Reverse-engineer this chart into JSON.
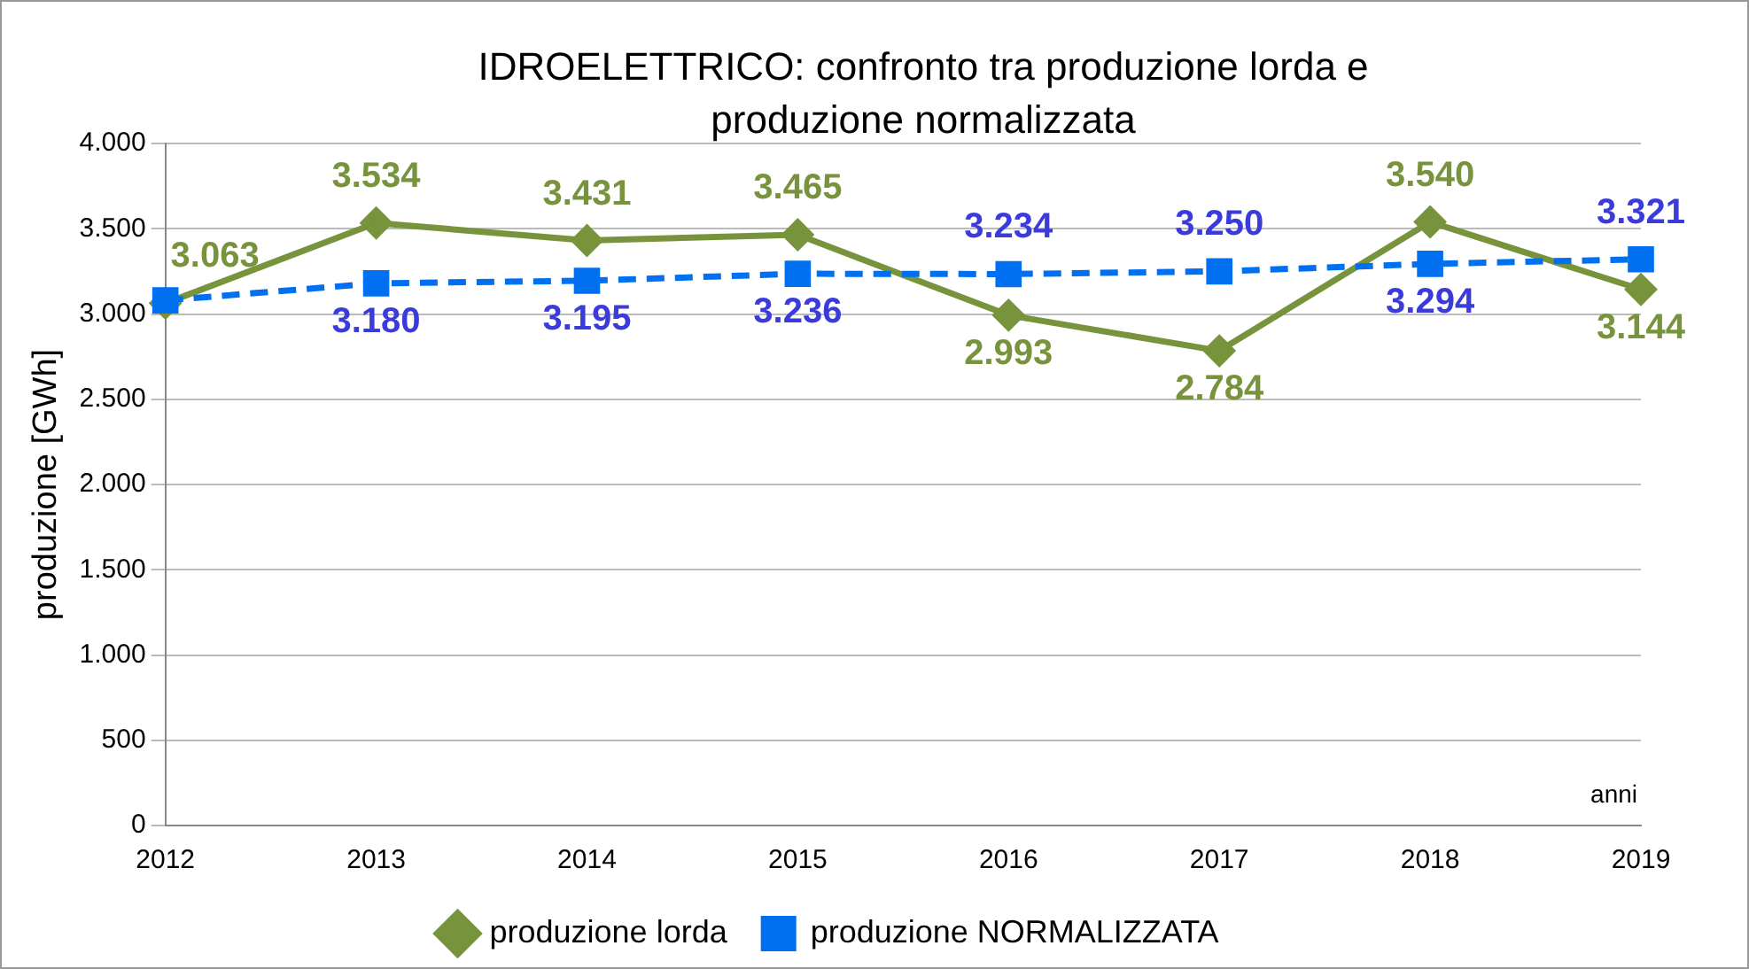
{
  "chart_data": {
    "type": "line",
    "title": "IDROELETTRICO: confronto tra produzione lorda e produzione normalizzata",
    "ylabel": "produzione [GWh]",
    "xlabel": "anni",
    "categories": [
      "2012",
      "2013",
      "2014",
      "2015",
      "2016",
      "2017",
      "2018",
      "2019"
    ],
    "series": [
      {
        "name": "produzione lorda",
        "color": "#77933c",
        "marker": "diamond",
        "line_style": "solid",
        "values": [
          3063,
          3534,
          3431,
          3465,
          2993,
          2784,
          3540,
          3144
        ],
        "value_labels": [
          "3.063",
          "3.534",
          "3.431",
          "3.465",
          "2.993",
          "2.784",
          "3.540",
          "3.144"
        ]
      },
      {
        "name": "produzione NORMALIZZATA",
        "color": "#0070f0",
        "marker": "square",
        "line_style": "dashed",
        "values": [
          3080,
          3180,
          3195,
          3236,
          3234,
          3250,
          3294,
          3321
        ],
        "value_labels": [
          null,
          "3.180",
          "3.195",
          "3.236",
          "3.234",
          "3.250",
          "3.294",
          "3.321"
        ]
      }
    ],
    "ylim": [
      0,
      4000
    ],
    "yticks": [
      {
        "value": 0,
        "label": "0"
      },
      {
        "value": 500,
        "label": "500"
      },
      {
        "value": 1000,
        "label": "1.000"
      },
      {
        "value": 1500,
        "label": "1.500"
      },
      {
        "value": 2000,
        "label": "2.000"
      },
      {
        "value": 2500,
        "label": "2.500"
      },
      {
        "value": 3000,
        "label": "3.000"
      },
      {
        "value": 3500,
        "label": "3.500"
      },
      {
        "value": 4000,
        "label": "4.000"
      }
    ],
    "grid": "y",
    "legend": "bottom"
  }
}
